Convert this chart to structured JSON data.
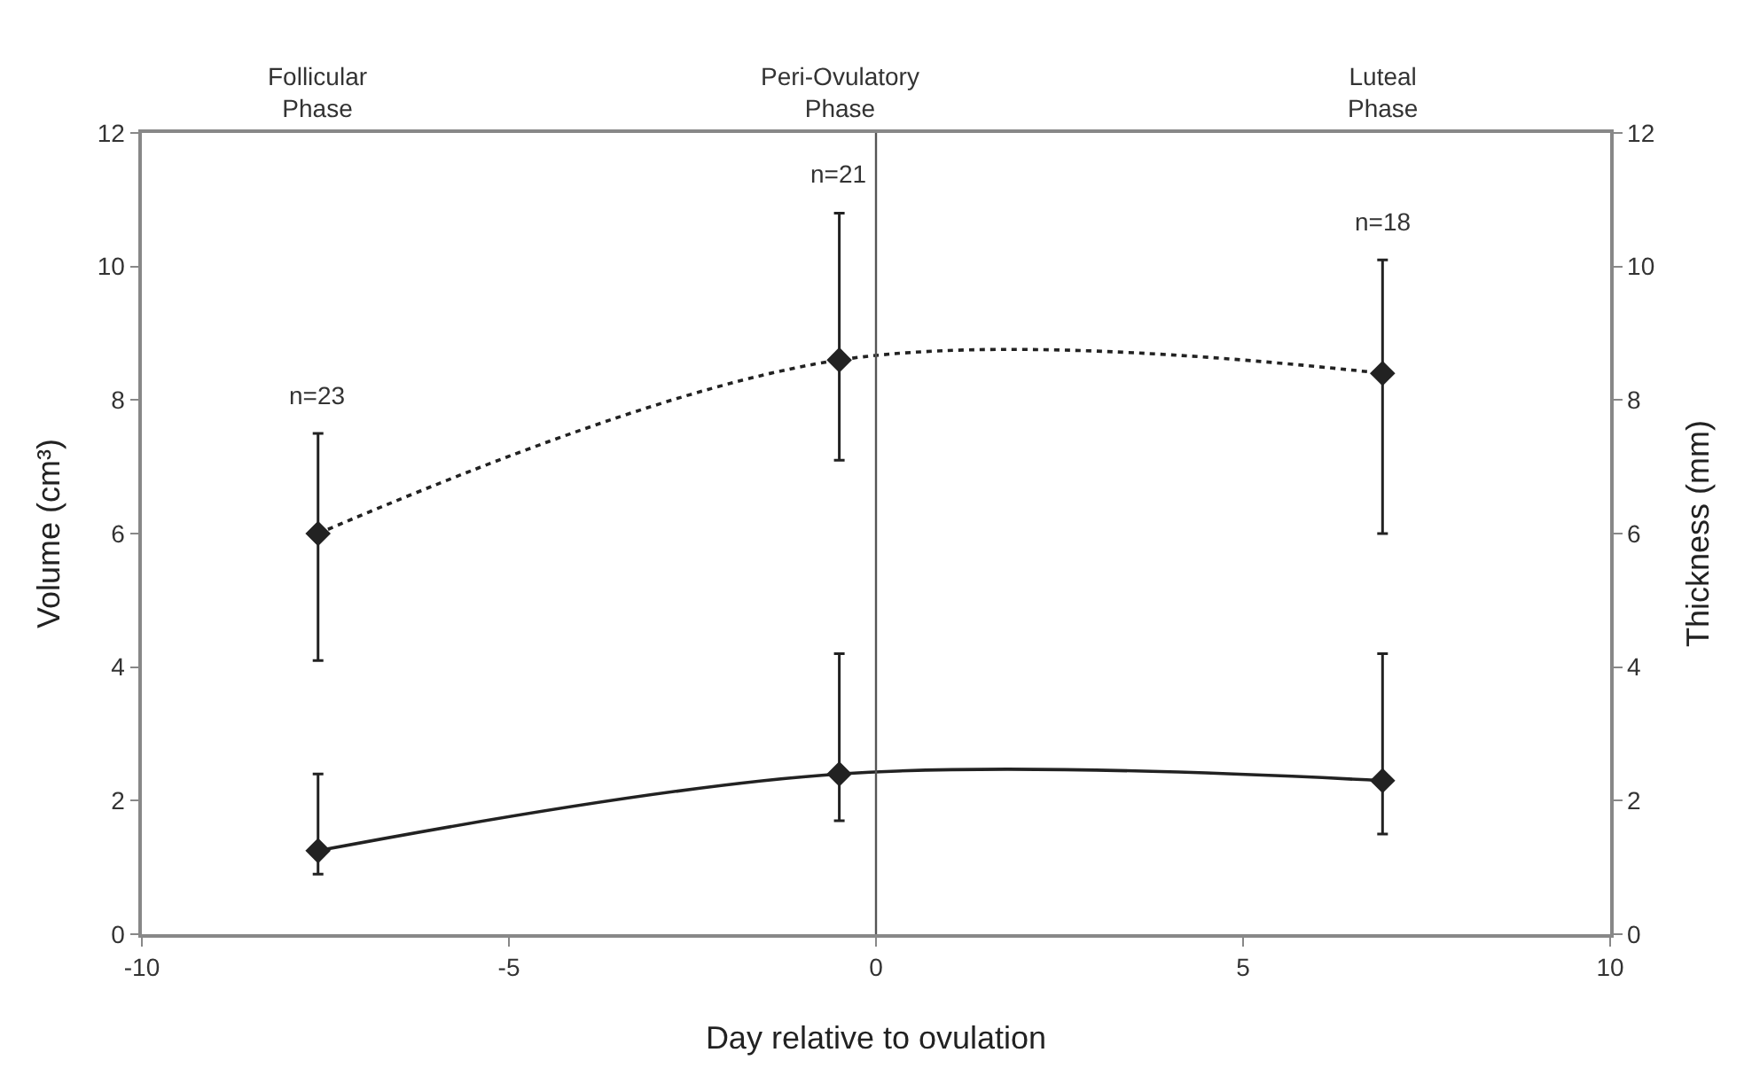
{
  "chart_data": {
    "type": "line",
    "xlabel": "Day relative to ovulation",
    "ylabel": "Volume (cm³)",
    "y2label": "Thickness (mm)",
    "x": [
      -7.6,
      -0.5,
      6.9
    ],
    "series": [
      {
        "color": "#222222",
        "axis": "y2",
        "line_style": "dotted",
        "values": [
          6.0,
          8.6,
          8.4
        ],
        "errors": [
          [
            4.1,
            7.5
          ],
          [
            7.1,
            10.8
          ],
          [
            6.0,
            10.1
          ]
        ]
      },
      {
        "color": "#222222",
        "line_style": "solid",
        "values": [
          1.25,
          2.4,
          2.3
        ],
        "errors": [
          [
            0.9,
            2.4
          ],
          [
            1.7,
            4.2
          ],
          [
            1.5,
            4.2
          ]
        ]
      }
    ],
    "xlim": [
      -10,
      10
    ],
    "xticks": [
      -10,
      -5,
      0,
      5,
      10
    ],
    "ylim": [
      0,
      12
    ],
    "yticks": [
      0,
      2,
      4,
      6,
      8,
      10,
      12
    ],
    "y2lim": [
      0,
      12
    ],
    "y2ticks": [
      0,
      2,
      4,
      6,
      8,
      10,
      12
    ],
    "ref_lines": [
      {
        "axis": "x",
        "value": 0,
        "color": "#555555"
      }
    ],
    "annotations": [
      "Follicular\nPhase",
      "Peri-Ovulatory\nPhase",
      "Luteal\nPhase",
      "n=23",
      "n=21",
      "n=18"
    ],
    "marker": "diamond",
    "grid": false
  }
}
